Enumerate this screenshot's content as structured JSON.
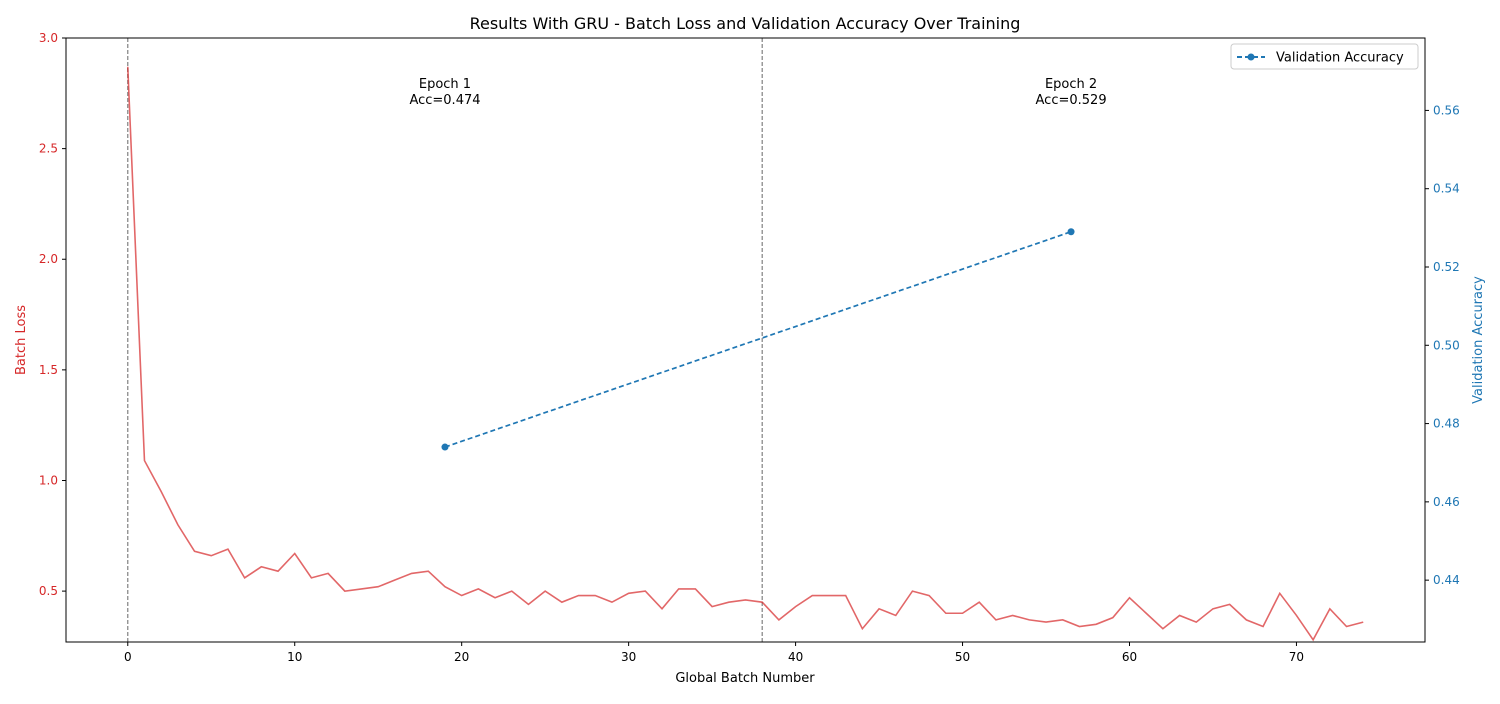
{
  "chart_data": {
    "type": "line",
    "title": "Results With GRU - Batch Loss and Validation Accuracy Over Training",
    "xlabel": "Global Batch Number",
    "ylabel_left": "Batch Loss",
    "ylabel_right": "Validation Accuracy",
    "xlim": [
      -3.7,
      77.7
    ],
    "ylim_left": [
      0.27,
      3.0
    ],
    "ylim_right": [
      0.4242,
      0.5785
    ],
    "x_ticks": [
      "0",
      "10",
      "20",
      "30",
      "40",
      "50",
      "60",
      "70"
    ],
    "y_ticks_left": [
      "0.5",
      "1.0",
      "1.5",
      "2.0",
      "2.5",
      "3.0"
    ],
    "y_ticks_right": [
      "0.44",
      "0.46",
      "0.48",
      "0.50",
      "0.52",
      "0.54",
      "0.56"
    ],
    "grid": false,
    "legend_position": "top-right",
    "colors": {
      "loss": "#d62728",
      "accuracy": "#1f77b4",
      "epoch_line": "#808080"
    },
    "epoch_boundaries": [
      0,
      38
    ],
    "annotations": [
      {
        "x": 19,
        "line1": "Epoch 1",
        "line2": "Acc=0.474"
      },
      {
        "x": 56.5,
        "line1": "Epoch 2",
        "line2": "Acc=0.529"
      }
    ],
    "series": [
      {
        "axis": "left",
        "style": "solid",
        "x": [
          0,
          1,
          2,
          3,
          4,
          5,
          6,
          7,
          8,
          9,
          10,
          11,
          12,
          13,
          14,
          15,
          16,
          17,
          18,
          19,
          20,
          21,
          22,
          23,
          24,
          25,
          26,
          27,
          28,
          29,
          30,
          31,
          32,
          33,
          34,
          35,
          36,
          37,
          38,
          39,
          40,
          41,
          42,
          43,
          44,
          45,
          46,
          47,
          48,
          49,
          50,
          51,
          52,
          53,
          54,
          55,
          56,
          57,
          58,
          59,
          60,
          61,
          62,
          63,
          64,
          65,
          66,
          67,
          68,
          69,
          70,
          71,
          72,
          73,
          74
        ],
        "values": [
          2.87,
          1.09,
          0.95,
          0.8,
          0.68,
          0.66,
          0.69,
          0.56,
          0.61,
          0.59,
          0.67,
          0.56,
          0.58,
          0.5,
          0.51,
          0.52,
          0.55,
          0.58,
          0.59,
          0.52,
          0.48,
          0.51,
          0.47,
          0.5,
          0.44,
          0.5,
          0.45,
          0.48,
          0.48,
          0.45,
          0.49,
          0.5,
          0.42,
          0.51,
          0.51,
          0.43,
          0.45,
          0.46,
          0.45,
          0.37,
          0.43,
          0.48,
          0.48,
          0.48,
          0.33,
          0.42,
          0.39,
          0.5,
          0.48,
          0.4,
          0.4,
          0.45,
          0.37,
          0.39,
          0.37,
          0.36,
          0.37,
          0.34,
          0.35,
          0.38,
          0.47,
          0.4,
          0.33,
          0.39,
          0.36,
          0.42,
          0.44,
          0.37,
          0.34,
          0.49,
          0.39,
          0.28,
          0.42,
          0.34,
          0.36
        ]
      },
      {
        "axis": "right",
        "style": "dashed",
        "name": "Validation Accuracy",
        "x": [
          19,
          56.5
        ],
        "values": [
          0.474,
          0.529
        ]
      }
    ]
  }
}
